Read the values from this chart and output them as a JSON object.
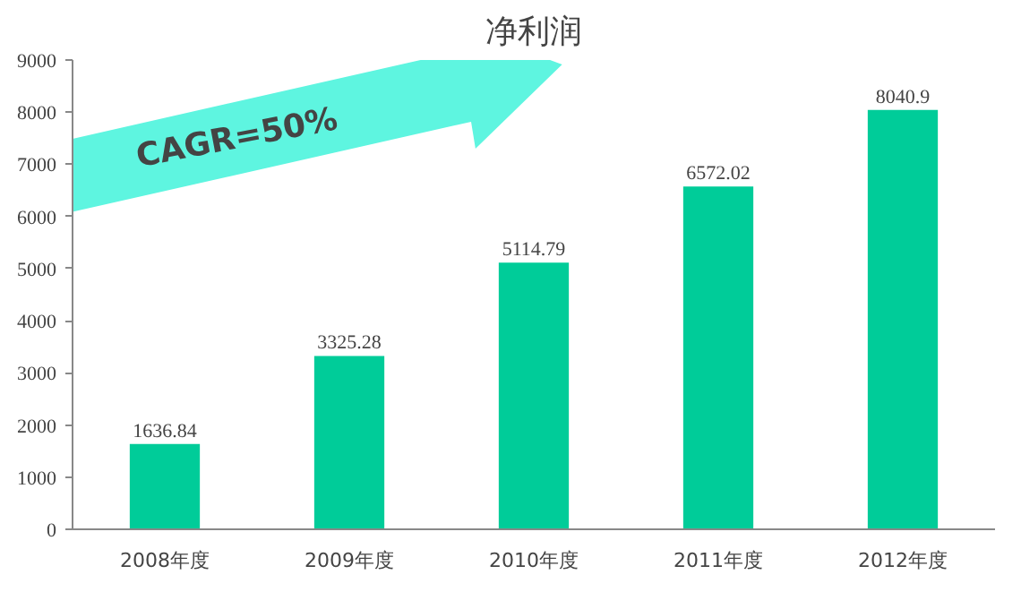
{
  "chart_data": {
    "type": "bar",
    "title": "净利润",
    "categories": [
      "2008年度",
      "2009年度",
      "2010年度",
      "2011年度",
      "2012年度"
    ],
    "values": [
      1636.84,
      3325.28,
      5114.79,
      6572.02,
      8040.9
    ],
    "value_labels": [
      "1636.84",
      "3325.28",
      "5114.79",
      "6572.02",
      "8040.9"
    ],
    "color": "#00cc99",
    "ylim": [
      0,
      9000
    ],
    "yticks": [
      0,
      1000,
      2000,
      3000,
      4000,
      5000,
      6000,
      7000,
      8000,
      9000
    ],
    "annotations": [
      "CAGR=50%"
    ]
  }
}
